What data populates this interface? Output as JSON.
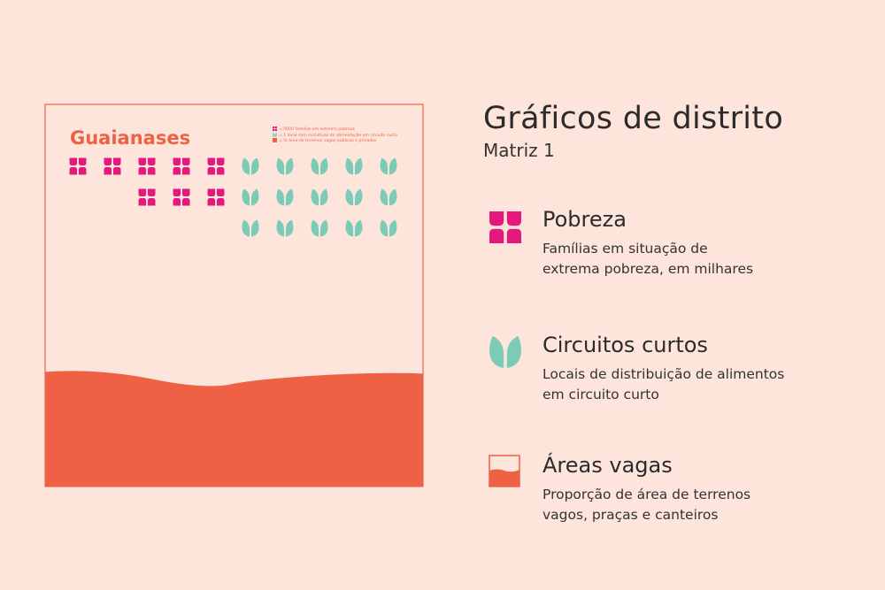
{
  "panel": {
    "district": "Guaianases",
    "legend": [
      "= 5000 famílias em extrema pobreza",
      "= 1 local com iniciativas de alimentação em circuito curto",
      "= % área de terrenos vagos públicos e privados"
    ],
    "poverty_icons": 8,
    "circuit_icons": 15,
    "vacant_area_percent": 30
  },
  "header": {
    "title": "Gráficos de distrito",
    "subtitle": "Matriz 1"
  },
  "items": [
    {
      "title": "Pobreza",
      "description": [
        "Famílias em situação de",
        "extrema pobreza, em milhares"
      ]
    },
    {
      "title": "Circuitos curtos",
      "description": [
        "Locais de distribuição de alimentos",
        "em circuito curto"
      ]
    },
    {
      "title": "Áreas vagas",
      "description": [
        "Proporção de área de terrenos",
        "vagos, praças e canteiros"
      ]
    }
  ]
}
